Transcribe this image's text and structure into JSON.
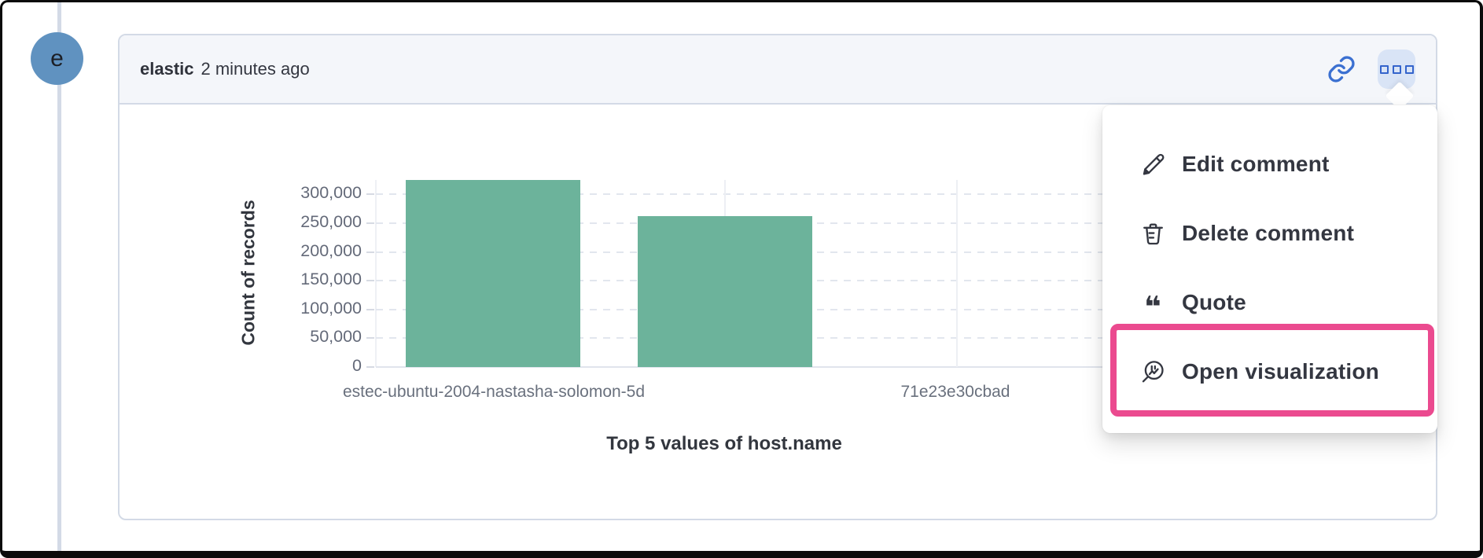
{
  "thread": {
    "avatar_initial": "e"
  },
  "comment": {
    "author": "elastic",
    "timestamp": "2 minutes ago"
  },
  "header_actions": {
    "link_icon": "link-icon",
    "more_icon": "boxes-horizontal-icon"
  },
  "menu": {
    "items": [
      {
        "label": "Edit comment",
        "icon": "pencil-icon",
        "highlighted": false
      },
      {
        "label": "Delete comment",
        "icon": "trash-icon",
        "highlighted": false
      },
      {
        "label": "Quote",
        "icon": "quote-icon",
        "highlighted": false
      },
      {
        "label": "Open visualization",
        "icon": "lens-icon",
        "highlighted": true
      }
    ],
    "quote_glyph": "❝"
  },
  "chart_data": {
    "type": "bar",
    "title": "",
    "xlabel": "Top 5 values of host.name",
    "ylabel": "Count of records",
    "categories": [
      "estec-ubuntu-2004-nastasha-solomon-5d",
      "71e23e30cbad"
    ],
    "values": [
      325000,
      262000
    ],
    "yticks": [
      0,
      50000,
      100000,
      150000,
      200000,
      250000,
      300000
    ],
    "ylim": [
      0,
      325000
    ],
    "grid": "horizontal-dashed",
    "legend": "off",
    "bar_color": "#6CB39B"
  },
  "colors": {
    "accent_blue": "#3B70D1",
    "avatar_blue": "#6092C0",
    "bar_green": "#6CB39B",
    "highlight_pink": "#EB4A8F",
    "text_dark": "#343741",
    "text_subdued": "#69707D",
    "border_gray": "#D3DAE6",
    "header_bg": "#F4F6FA",
    "more_button_bg": "#D9E4F6"
  }
}
